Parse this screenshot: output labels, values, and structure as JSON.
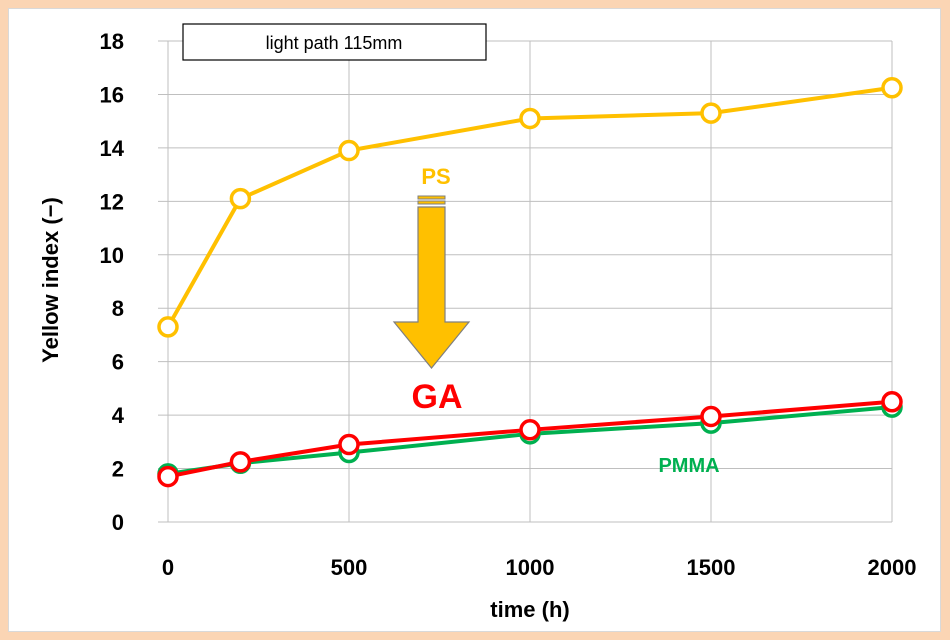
{
  "chart_data": {
    "type": "line",
    "x": [
      0,
      200,
      500,
      1000,
      1500,
      2000
    ],
    "series": [
      {
        "name": "PS",
        "color": "#FFC000",
        "values": [
          7.3,
          12.1,
          13.9,
          15.1,
          15.3,
          16.25
        ]
      },
      {
        "name": "PMMA",
        "color": "#00B050",
        "values": [
          1.8,
          2.2,
          2.6,
          3.3,
          3.7,
          4.3
        ]
      },
      {
        "name": "GA",
        "color": "#FF0000",
        "values": [
          1.7,
          2.25,
          2.9,
          3.45,
          3.95,
          4.5
        ]
      }
    ],
    "xlabel": "time (h)",
    "ylabel": "Yellow index (−)",
    "xlim": [
      0,
      2000
    ],
    "ylim": [
      0,
      18
    ],
    "xticks": [
      0,
      500,
      1000,
      1500,
      2000
    ],
    "yticks": [
      0,
      2,
      4,
      6,
      8,
      10,
      12,
      14,
      16,
      18
    ],
    "grid": true,
    "annotations": {
      "box_label": "light path 115mm",
      "ps_label": "PS",
      "ga_label": "GA",
      "pmma_label": "PMMA",
      "arrow": "down"
    }
  }
}
